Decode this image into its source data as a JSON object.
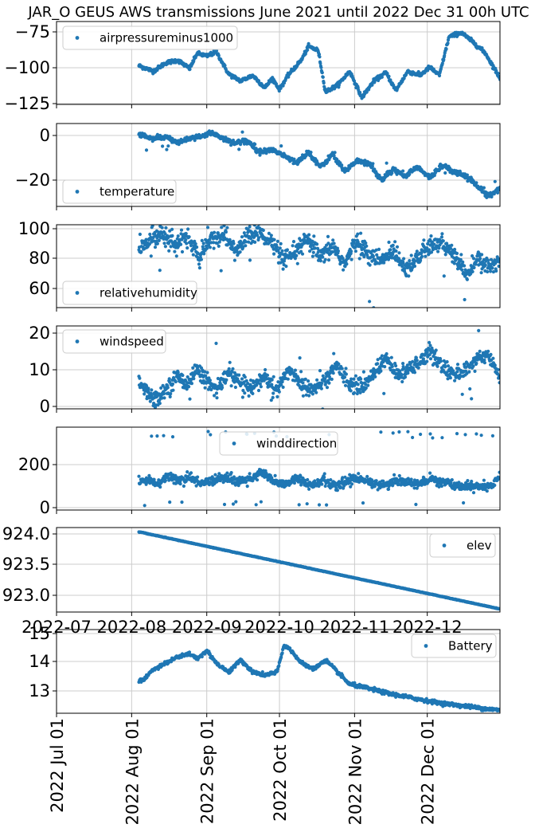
{
  "title": "JAR_O GEUS AWS transmissions June 2021 until 2022 Dec 31 00h UTC",
  "colors": {
    "series": "#1f77b4",
    "grid": "#cccccc",
    "axis": "#000000",
    "legend_border": "#cccccc"
  },
  "x_range": [
    "2022-07-01",
    "2022-12-31"
  ],
  "x_data_start": "2022-08-04",
  "middle_x_tick_labels": [
    "2022-07",
    "2022-08",
    "2022-09",
    "2022-10",
    "2022-11",
    "2022-12"
  ],
  "bottom_x_tick_labels": [
    "2022 Jul 01",
    "2022 Aug 01",
    "2022 Sep 01",
    "2022 Oct 01",
    "2022 Nov 01",
    "2022 Dec 01"
  ],
  "chart_data": [
    {
      "type": "scatter",
      "ylim": [
        -127,
        -67
      ],
      "yticks": [
        "−75",
        "−100",
        "−125"
      ],
      "legend": "top-left",
      "grid": true,
      "series": [
        {
          "name": "airpressureminus1000",
          "x": [
            "2022-08-04",
            "2022-08-10",
            "2022-08-15",
            "2022-08-20",
            "2022-08-25",
            "2022-08-28",
            "2022-09-01",
            "2022-09-05",
            "2022-09-10",
            "2022-09-15",
            "2022-09-20",
            "2022-09-25",
            "2022-09-28",
            "2022-10-01",
            "2022-10-05",
            "2022-10-10",
            "2022-10-13",
            "2022-10-17",
            "2022-10-20",
            "2022-10-25",
            "2022-10-30",
            "2022-11-04",
            "2022-11-09",
            "2022-11-14",
            "2022-11-18",
            "2022-11-23",
            "2022-11-28",
            "2022-12-02",
            "2022-12-06",
            "2022-12-10",
            "2022-12-15",
            "2022-12-20",
            "2022-12-25",
            "2022-12-31"
          ],
          "y": [
            -99,
            -103,
            -97,
            -95,
            -101,
            -90,
            -92,
            -89,
            -105,
            -110,
            -106,
            -115,
            -108,
            -116,
            -105,
            -95,
            -85,
            -88,
            -118,
            -113,
            -103,
            -122,
            -110,
            -104,
            -117,
            -103,
            -106,
            -100,
            -106,
            -78,
            -75,
            -82,
            -90,
            -108
          ]
        }
      ]
    },
    {
      "type": "scatter",
      "ylim": [
        -32,
        6
      ],
      "yticks": [
        "0",
        "−20"
      ],
      "legend": "bottom-left",
      "grid": true,
      "series": [
        {
          "name": "temperature",
          "x": [
            "2022-08-04",
            "2022-08-10",
            "2022-08-15",
            "2022-08-20",
            "2022-08-25",
            "2022-08-30",
            "2022-09-03",
            "2022-09-08",
            "2022-09-13",
            "2022-09-18",
            "2022-09-23",
            "2022-09-28",
            "2022-10-03",
            "2022-10-08",
            "2022-10-13",
            "2022-10-18",
            "2022-10-23",
            "2022-10-28",
            "2022-11-02",
            "2022-11-07",
            "2022-11-12",
            "2022-11-17",
            "2022-11-22",
            "2022-11-27",
            "2022-12-02",
            "2022-12-07",
            "2022-12-12",
            "2022-12-17",
            "2022-12-22",
            "2022-12-26",
            "2022-12-31"
          ],
          "y": [
            1,
            -1,
            0,
            -3,
            -1,
            0,
            2,
            -1,
            -3,
            -2,
            -7,
            -6,
            -9,
            -12,
            -7,
            -14,
            -8,
            -16,
            -11,
            -12,
            -20,
            -15,
            -18,
            -14,
            -19,
            -13,
            -16,
            -18,
            -23,
            -27,
            -24
          ]
        }
      ]
    },
    {
      "type": "scatter",
      "ylim": [
        48,
        102
      ],
      "yticks": [
        "100",
        "80",
        "60"
      ],
      "legend": "bottom-left",
      "grid": true,
      "series": [
        {
          "name": "relativehumidity",
          "x": [
            "2022-08-04",
            "2022-08-09",
            "2022-08-14",
            "2022-08-19",
            "2022-08-24",
            "2022-08-29",
            "2022-09-03",
            "2022-09-08",
            "2022-09-13",
            "2022-09-18",
            "2022-09-23",
            "2022-09-28",
            "2022-10-03",
            "2022-10-08",
            "2022-10-13",
            "2022-10-18",
            "2022-10-23",
            "2022-10-28",
            "2022-11-02",
            "2022-11-07",
            "2022-11-12",
            "2022-11-17",
            "2022-11-22",
            "2022-11-27",
            "2022-12-02",
            "2022-12-07",
            "2022-12-12",
            "2022-12-17",
            "2022-12-22",
            "2022-12-27",
            "2022-12-31"
          ],
          "y": [
            85,
            93,
            97,
            88,
            95,
            80,
            93,
            96,
            84,
            95,
            97,
            90,
            78,
            85,
            92,
            80,
            88,
            76,
            92,
            82,
            78,
            86,
            74,
            80,
            88,
            90,
            82,
            70,
            79,
            74,
            80
          ]
        }
      ]
    },
    {
      "type": "scatter",
      "ylim": [
        -1,
        22
      ],
      "yticks": [
        "20",
        "10",
        "0"
      ],
      "legend": "top-left",
      "grid": true,
      "series": [
        {
          "name": "windspeed",
          "x": [
            "2022-08-04",
            "2022-08-08",
            "2022-08-12",
            "2022-08-16",
            "2022-08-20",
            "2022-08-24",
            "2022-08-28",
            "2022-09-01",
            "2022-09-05",
            "2022-09-10",
            "2022-09-15",
            "2022-09-20",
            "2022-09-25",
            "2022-09-30",
            "2022-10-05",
            "2022-10-10",
            "2022-10-15",
            "2022-10-20",
            "2022-10-25",
            "2022-10-30",
            "2022-11-04",
            "2022-11-09",
            "2022-11-14",
            "2022-11-19",
            "2022-11-24",
            "2022-11-28",
            "2022-12-02",
            "2022-12-07",
            "2022-12-12",
            "2022-12-17",
            "2022-12-22",
            "2022-12-27",
            "2022-12-31"
          ],
          "y": [
            7,
            3,
            2,
            5,
            8,
            6,
            10,
            7,
            4,
            9,
            6,
            5,
            8,
            4,
            10,
            6,
            4,
            7,
            11,
            6,
            5,
            9,
            13,
            8,
            10,
            12,
            15,
            11,
            8,
            10,
            13,
            14,
            7
          ]
        }
      ]
    },
    {
      "type": "scatter",
      "ylim": [
        -15,
        370
      ],
      "yticks": [
        "200",
        "0"
      ],
      "legend": "top-center",
      "grid": true,
      "series": [
        {
          "name": "winddirection",
          "x": [
            "2022-08-04",
            "2022-08-08",
            "2022-08-12",
            "2022-08-16",
            "2022-08-20",
            "2022-08-25",
            "2022-08-30",
            "2022-09-04",
            "2022-09-09",
            "2022-09-14",
            "2022-09-19",
            "2022-09-24",
            "2022-09-29",
            "2022-10-04",
            "2022-10-09",
            "2022-10-14",
            "2022-10-19",
            "2022-10-24",
            "2022-10-29",
            "2022-11-03",
            "2022-11-08",
            "2022-11-13",
            "2022-11-18",
            "2022-11-23",
            "2022-11-28",
            "2022-12-03",
            "2022-12-08",
            "2022-12-13",
            "2022-12-18",
            "2022-12-23",
            "2022-12-28",
            "2022-12-31"
          ],
          "y": [
            115,
            130,
            100,
            150,
            120,
            135,
            110,
            125,
            140,
            115,
            130,
            160,
            120,
            110,
            130,
            100,
            125,
            90,
            120,
            135,
            110,
            100,
            120,
            115,
            105,
            130,
            110,
            100,
            95,
            90,
            100,
            140
          ]
        }
      ]
    },
    {
      "type": "scatter",
      "ylim": [
        922.73,
        924.1
      ],
      "yticks": [
        "924.0",
        "923.5",
        "923.0"
      ],
      "legend": "top-right",
      "grid": true,
      "series": [
        {
          "name": "elev",
          "x": [
            "2022-08-04",
            "2022-12-31"
          ],
          "y": [
            924.03,
            922.78
          ]
        }
      ]
    },
    {
      "type": "scatter",
      "ylim": [
        12.25,
        15.0
      ],
      "yticks": [
        "15",
        "14",
        "13"
      ],
      "legend": "top-right",
      "grid": true,
      "series": [
        {
          "name": "Battery",
          "x": [
            "2022-08-04",
            "2022-08-06",
            "2022-08-10",
            "2022-08-15",
            "2022-08-20",
            "2022-08-25",
            "2022-08-28",
            "2022-09-01",
            "2022-09-05",
            "2022-09-10",
            "2022-09-15",
            "2022-09-20",
            "2022-09-25",
            "2022-09-30",
            "2022-10-03",
            "2022-10-06",
            "2022-10-10",
            "2022-10-15",
            "2022-10-20",
            "2022-10-25",
            "2022-10-30",
            "2022-11-05",
            "2022-11-15",
            "2022-11-25",
            "2022-12-05",
            "2022-12-15",
            "2022-12-25",
            "2022-12-31"
          ],
          "y": [
            13.3,
            13.35,
            13.7,
            13.9,
            14.1,
            14.2,
            14.05,
            14.3,
            13.9,
            13.6,
            14.0,
            13.6,
            13.5,
            13.6,
            14.5,
            14.3,
            13.9,
            13.7,
            14.0,
            13.6,
            13.2,
            13.1,
            12.9,
            12.75,
            12.6,
            12.5,
            12.4,
            12.35
          ]
        }
      ]
    }
  ]
}
